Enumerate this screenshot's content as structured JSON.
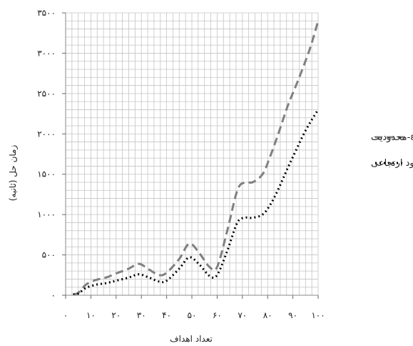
{
  "chart_data": {
    "type": "line",
    "title": "",
    "xlabel": "تعداد اهداف",
    "ylabel": "زمان حل (ثانیه)",
    "xlim": [
      0,
      100
    ],
    "ylim": [
      0,
      3500
    ],
    "x_ticks": [
      0,
      10,
      20,
      30,
      40,
      50,
      60,
      70,
      80,
      90,
      100
    ],
    "x_tick_labels": [
      "۰",
      "۱۰",
      "۲۰",
      "۳۰",
      "۴۰",
      "۵۰",
      "۶۰",
      "۷۰",
      "۸۰",
      "۹۰",
      "۱۰۰"
    ],
    "y_ticks": [
      0,
      500,
      1000,
      1500,
      2000,
      2500,
      3000,
      3500
    ],
    "y_tick_labels": [
      "۰",
      "۵۰۰",
      "۱۰۰۰",
      "۱۵۰۰",
      "۲۰۰۰",
      "۲۵۰۰",
      "۳۰۰۰",
      "۳۵۰۰"
    ],
    "grid": true,
    "legend_position": "right",
    "series": [
      {
        "name": "ε-محدودیت",
        "style": "dashed",
        "color": "#808080",
        "x": [
          3,
          5,
          8,
          12,
          16,
          20,
          25,
          29,
          33,
          37,
          40,
          45,
          49,
          53,
          57,
          60,
          64,
          68,
          71,
          74,
          78,
          81,
          84,
          88,
          91,
          94,
          97,
          100
        ],
        "y": [
          10,
          30,
          130,
          190,
          220,
          270,
          330,
          390,
          320,
          250,
          280,
          450,
          640,
          520,
          350,
          350,
          800,
          1300,
          1400,
          1400,
          1500,
          1720,
          1980,
          2350,
          2580,
          2820,
          3080,
          3400
        ]
      },
      {
        "name": "قیود ارتجاعی",
        "style": "dotted",
        "color": "#000000",
        "x": [
          3,
          5,
          8,
          12,
          16,
          20,
          25,
          29,
          33,
          37,
          40,
          45,
          49,
          53,
          57,
          60,
          64,
          68,
          71,
          74,
          78,
          81,
          84,
          88,
          91,
          94,
          97,
          100
        ],
        "y": [
          10,
          20,
          90,
          130,
          150,
          180,
          220,
          260,
          220,
          170,
          180,
          330,
          470,
          380,
          240,
          250,
          550,
          900,
          960,
          960,
          1000,
          1120,
          1300,
          1580,
          1780,
          1980,
          2150,
          2300
        ]
      }
    ]
  }
}
